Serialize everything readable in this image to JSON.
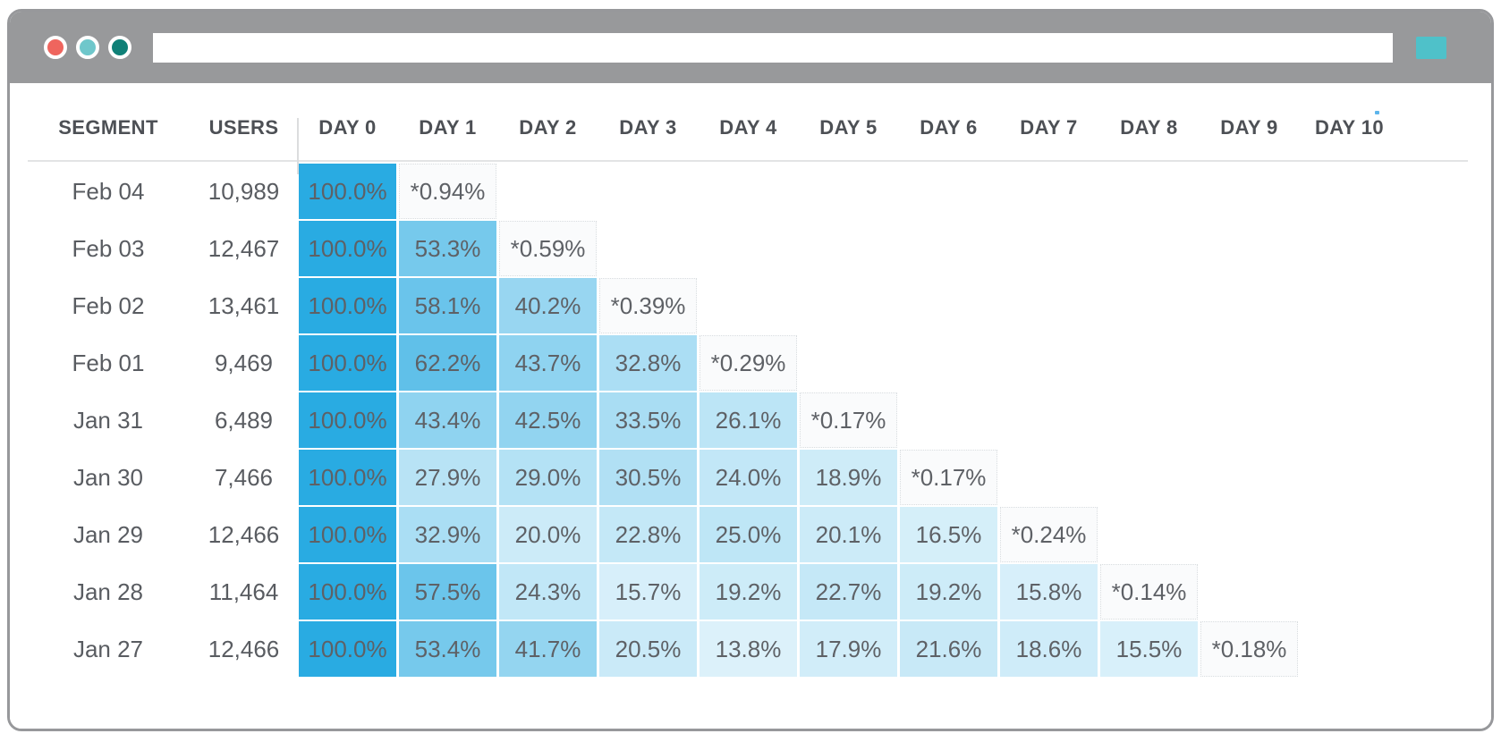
{
  "browser": {
    "window_controls": [
      {
        "name": "close",
        "color": "#EF655E"
      },
      {
        "name": "minimize",
        "color": "#6FC7CB"
      },
      {
        "name": "maximize",
        "color": "#0F8077"
      }
    ],
    "address_bar": {
      "value": "",
      "placeholder": ""
    },
    "action_button": {
      "color": "#4FC1C9"
    }
  },
  "chart_data": {
    "type": "heatmap",
    "title": "",
    "columns": {
      "segment": "SEGMENT",
      "users": "USERS",
      "days": [
        "DAY 0",
        "DAY 1",
        "DAY 2",
        "DAY 3",
        "DAY 4",
        "DAY 5",
        "DAY 6",
        "DAY 7",
        "DAY 8",
        "DAY 9",
        "DAY 10"
      ]
    },
    "rows": [
      {
        "segment": "Feb 04",
        "users": "10,989",
        "values": [
          "100.0%",
          "*0.94%"
        ]
      },
      {
        "segment": "Feb 03",
        "users": "12,467",
        "values": [
          "100.0%",
          "53.3%",
          "*0.59%"
        ]
      },
      {
        "segment": "Feb 02",
        "users": "13,461",
        "values": [
          "100.0%",
          "58.1%",
          "40.2%",
          "*0.39%"
        ]
      },
      {
        "segment": "Feb 01",
        "users": "9,469",
        "values": [
          "100.0%",
          "62.2%",
          "43.7%",
          "32.8%",
          "*0.29%"
        ]
      },
      {
        "segment": "Jan 31",
        "users": "6,489",
        "values": [
          "100.0%",
          "43.4%",
          "42.5%",
          "33.5%",
          "26.1%",
          "*0.17%"
        ]
      },
      {
        "segment": "Jan 30",
        "users": "7,466",
        "values": [
          "100.0%",
          "27.9%",
          "29.0%",
          "30.5%",
          "24.0%",
          "18.9%",
          "*0.17%"
        ]
      },
      {
        "segment": "Jan 29",
        "users": "12,466",
        "values": [
          "100.0%",
          "32.9%",
          "20.0%",
          "22.8%",
          "25.0%",
          "20.1%",
          "16.5%",
          "*0.24%"
        ]
      },
      {
        "segment": "Jan 28",
        "users": "11,464",
        "values": [
          "100.0%",
          "57.5%",
          "24.3%",
          "15.7%",
          "19.2%",
          "22.7%",
          "19.2%",
          "15.8%",
          "*0.14%"
        ]
      },
      {
        "segment": "Jan 27",
        "users": "12,466",
        "values": [
          "100.0%",
          "53.4%",
          "41.7%",
          "20.5%",
          "13.8%",
          "17.9%",
          "21.6%",
          "18.6%",
          "15.5%",
          "*0.18%"
        ]
      }
    ],
    "colors": {
      "base": "#29ABE2",
      "cell_text": "#5E6166",
      "header_text": "#4D5055"
    },
    "layout": {
      "legend": false,
      "grid": false,
      "axis": "days 0-10 across, daily cohorts down",
      "textured_cells": [
        [
          3,
          1
        ],
        [
          8,
          4
        ]
      ]
    }
  }
}
